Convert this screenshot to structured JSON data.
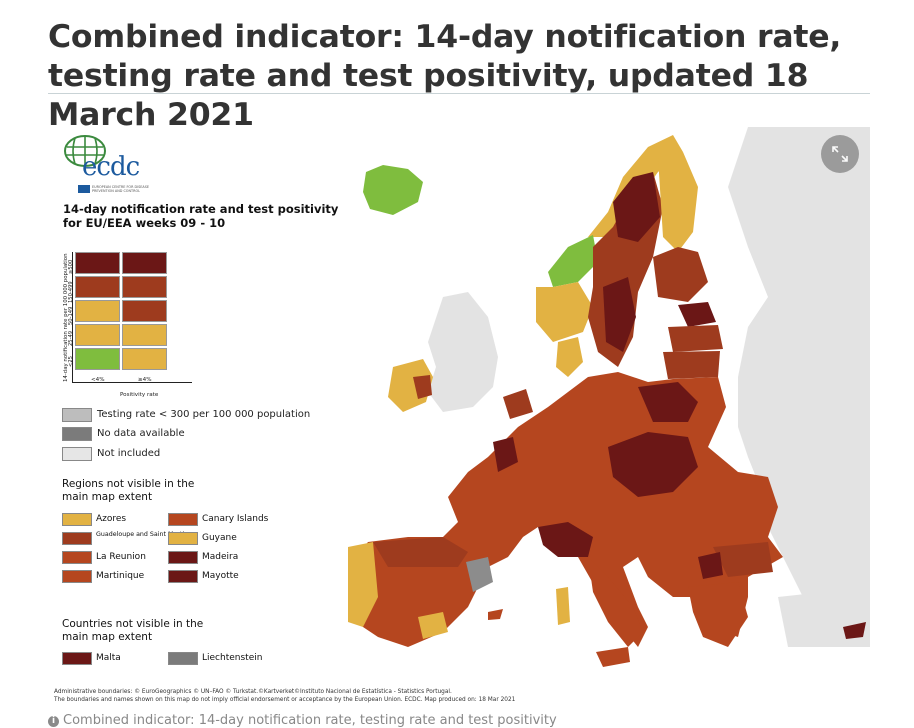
{
  "page": {
    "title": "Combined indicator: 14-day notification rate, testing rate and test positivity, updated 18 March 2021",
    "caption": "Combined indicator: 14-day notification rate, testing rate and test positivity"
  },
  "colors": {
    "dark_red": "#6b1716",
    "red": "#9e3b1e",
    "orange": "#b5461f",
    "yellow": "#e2b243",
    "green": "#7fbd3e",
    "light_grey": "#bdbdbd",
    "dark_grey": "#7b7b7b",
    "not_included": "#e6e6e6"
  },
  "logo": {
    "text": "ecdc",
    "sub": "EUROPEAN CENTRE FOR DISEASE PREVENTION AND CONTROL"
  },
  "legend": {
    "title_line1": "14-day notification rate and test positivity",
    "title_line2": "for EU/EEA weeks 09 - 10",
    "y_axis_label": "14-day notification rate per 100 000 population",
    "x_axis_label": "Positivity rate",
    "y_ticks": [
      "≥500",
      "150-499",
      "50-149",
      "25-49",
      "<25"
    ],
    "x_ticks": [
      "<4%",
      "≥4%"
    ],
    "testing_rate": "Testing rate < 300 per 100 000 population",
    "no_data": "No data available",
    "not_included": "Not included"
  },
  "regions_not_visible": {
    "title": "Regions not visible in the main map extent",
    "items": [
      {
        "name": "Azores",
        "color": "#e2b243"
      },
      {
        "name": "Guadeloupe and Saint Martin",
        "color": "#9e3b1e"
      },
      {
        "name": "La Reunion",
        "color": "#b5461f"
      },
      {
        "name": "Martinique",
        "color": "#b5461f"
      },
      {
        "name": "Canary Islands",
        "color": "#b5461f"
      },
      {
        "name": "Guyane",
        "color": "#e2b243"
      },
      {
        "name": "Madeira",
        "color": "#6b1716"
      },
      {
        "name": "Mayotte",
        "color": "#6b1716"
      }
    ]
  },
  "countries_not_visible": {
    "title": "Countries not visible in the main map extent",
    "items": [
      {
        "name": "Malta",
        "color": "#6b1716"
      },
      {
        "name": "Liechtenstein",
        "color": "#7b7b7b"
      }
    ]
  },
  "footer": {
    "line1": "Administrative boundaries: © EuroGeographics © UN–FAO © Turkstat.©Kartverket©Instituto Nacional de Estatística - Statistics Portugal.",
    "line2": "The boundaries and names shown on this map do not imply official endorsement or acceptance by the European Union. ECDC. Map produced on: 18 Mar 2021"
  },
  "expand_icon": "expand-icon",
  "info_icon": "info-icon"
}
